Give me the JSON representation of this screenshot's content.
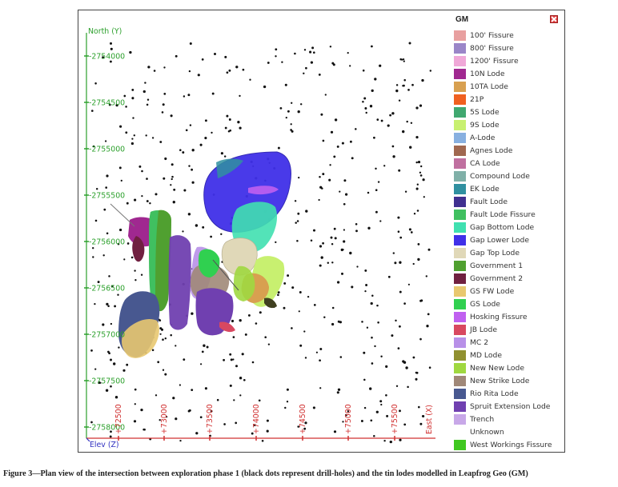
{
  "viewer": {
    "north_axis_title": "North (Y)",
    "east_axis_title": "East (X)",
    "elev_axis_title": "Elev (Z)",
    "y_ticks": [
      "-2754000",
      "-2754500",
      "-2755000",
      "-2755500",
      "-2756000",
      "-2756500",
      "-2757000",
      "-2757500",
      "-2758000"
    ],
    "x_ticks": [
      "+72500",
      "+73000",
      "+73500",
      "+74000",
      "+74500",
      "+75000",
      "+75500"
    ],
    "colors": {
      "north_axis": "#2ca02c",
      "east_axis": "#d03030",
      "elev_axis": "#3030c0",
      "drillhole": "#111111"
    }
  },
  "legend": {
    "title": "GM",
    "items": [
      {
        "label": "100' Fissure",
        "color": "#e8a0a0"
      },
      {
        "label": "800' Fissure",
        "color": "#9a86c8"
      },
      {
        "label": "1200' Fissure",
        "color": "#f0a8d8"
      },
      {
        "label": "10N Lode",
        "color": "#a02890"
      },
      {
        "label": "10TA Lode",
        "color": "#d8a050"
      },
      {
        "label": "21P",
        "color": "#f06020"
      },
      {
        "label": "5S Lode",
        "color": "#40a870"
      },
      {
        "label": "9S Lode",
        "color": "#c8f070"
      },
      {
        "label": "A-Lode",
        "color": "#88b0e0"
      },
      {
        "label": "Agnes Lode",
        "color": "#a06850"
      },
      {
        "label": "CA Lode",
        "color": "#c070a0"
      },
      {
        "label": "Compound Lode",
        "color": "#80b0a8"
      },
      {
        "label": "EK Lode",
        "color": "#3090a0"
      },
      {
        "label": "Fault Lode",
        "color": "#403090"
      },
      {
        "label": "Fault Lode Fissure",
        "color": "#40c060"
      },
      {
        "label": "Gap Bottom Lode",
        "color": "#40e0b0"
      },
      {
        "label": "Gap Lower Lode",
        "color": "#4030e8"
      },
      {
        "label": "Gap Top Lode",
        "color": "#e0d8b8"
      },
      {
        "label": "Government 1",
        "color": "#50a030"
      },
      {
        "label": "Government 2",
        "color": "#702040"
      },
      {
        "label": "GS FW Lode",
        "color": "#e8c870"
      },
      {
        "label": "GS Lode",
        "color": "#30d050"
      },
      {
        "label": "Hosking Fissure",
        "color": "#c060f0"
      },
      {
        "label": "JB Lode",
        "color": "#d84860"
      },
      {
        "label": "MC 2",
        "color": "#b890e8"
      },
      {
        "label": "MD Lode",
        "color": "#909030"
      },
      {
        "label": "New New Lode",
        "color": "#a0d840"
      },
      {
        "label": "New Strike Lode",
        "color": "#a08878"
      },
      {
        "label": "Rio Rita Lode",
        "color": "#485890"
      },
      {
        "label": "Spruit Extension Lode",
        "color": "#7040b0"
      },
      {
        "label": "Trench",
        "color": "#c8a8e8"
      },
      {
        "label": "Unknown",
        "color": "#ffffff"
      },
      {
        "label": "West Workings Fissure",
        "color": "#40c820"
      }
    ]
  },
  "caption": "Figure 3—Plan view of the intersection between exploration phase 1 (black dots represent drill-holes) and the tin lodes modelled in Leapfrog Geo (GM)"
}
